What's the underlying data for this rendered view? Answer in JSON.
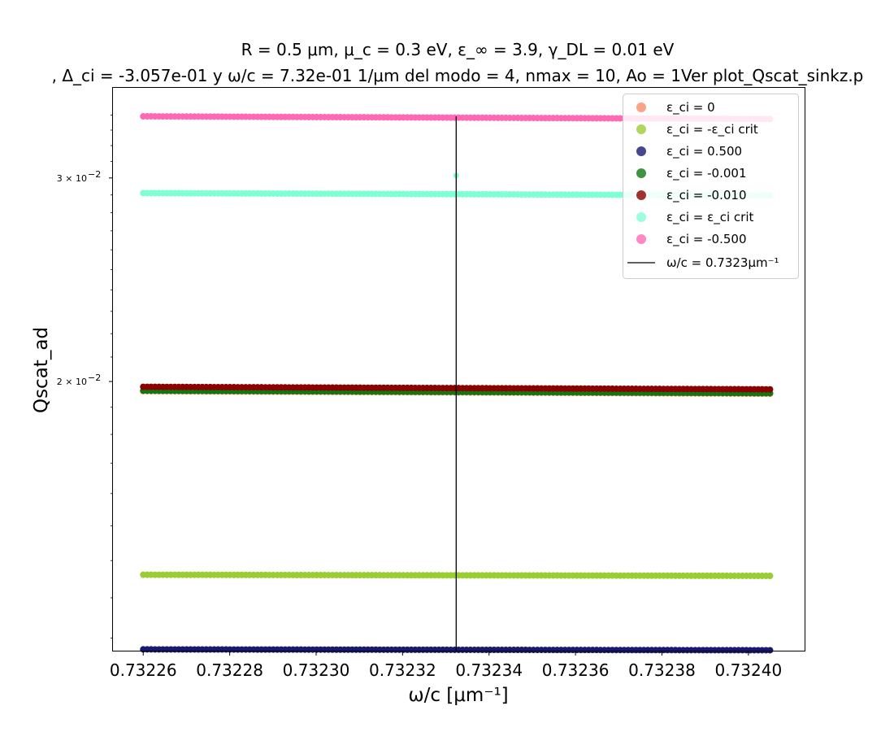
{
  "chart_data": {
    "type": "scatter",
    "title_line1": "R = 0.5 μm, μ_c = 0.3 eV, ε_∞ = 3.9, γ_DL = 0.01 eV",
    "title_line2": ", Δ_ci = -3.057e-01 y ω/c = 7.32e-01 1/μm del modo = 4, nmax = 10, Ao = 1Ver plot_Qscat_sinkz.p",
    "xlabel": "ω/c [μm⁻¹]",
    "ylabel": "Qscat_ad",
    "xlim": [
      0.732253,
      0.732413
    ],
    "ylim": [
      0.0117,
      0.0359
    ],
    "yscale": "log",
    "x_range": [
      0.73226,
      0.732405
    ],
    "x_ticks": [
      {
        "value": 0.73226,
        "label": "0.73226"
      },
      {
        "value": 0.73228,
        "label": "0.73228"
      },
      {
        "value": 0.7323,
        "label": "0.73230"
      },
      {
        "value": 0.73232,
        "label": "0.73232"
      },
      {
        "value": 0.73234,
        "label": "0.73234"
      },
      {
        "value": 0.73236,
        "label": "0.73236"
      },
      {
        "value": 0.73238,
        "label": "0.73238"
      },
      {
        "value": 0.7324,
        "label": "0.73240"
      }
    ],
    "y_ticks": [
      {
        "value": 0.03,
        "mantissa": "3 × 10",
        "exp": "−2"
      },
      {
        "value": 0.02,
        "mantissa": "2 × 10",
        "exp": "−2"
      }
    ],
    "vline": {
      "x": 0.7323324,
      "label": "ω/c = 0.7323μm⁻¹",
      "color": "#000000"
    },
    "legend_position": "upper right",
    "series": [
      {
        "name": "ε_ci = 0",
        "color": "#fa8c69",
        "y_start": 0.01962,
        "y_end": 0.01952
      },
      {
        "name": "ε_ci = -ε_ci crit",
        "color": "#9acd32",
        "y_start": 0.01361,
        "y_end": 0.01358
      },
      {
        "name": "ε_ci = 0.500",
        "color": "#191970",
        "y_start": 0.01173,
        "y_end": 0.01171
      },
      {
        "name": "ε_ci = -0.001",
        "color": "#117711",
        "y_start": 0.01964,
        "y_end": 0.01954
      },
      {
        "name": "ε_ci = -0.010",
        "color": "#8b0000",
        "y_start": 0.01979,
        "y_end": 0.01969
      },
      {
        "name": "ε_ci = ε_ci crit",
        "color": "#7fffd4",
        "y_start": 0.02911,
        "y_end": 0.02898,
        "outlier": {
          "x": 0.7323324,
          "y": 0.03015
        }
      },
      {
        "name": "ε_ci = -0.500",
        "color": "#ff69b4",
        "y_start": 0.03392,
        "y_end": 0.03374
      }
    ]
  }
}
